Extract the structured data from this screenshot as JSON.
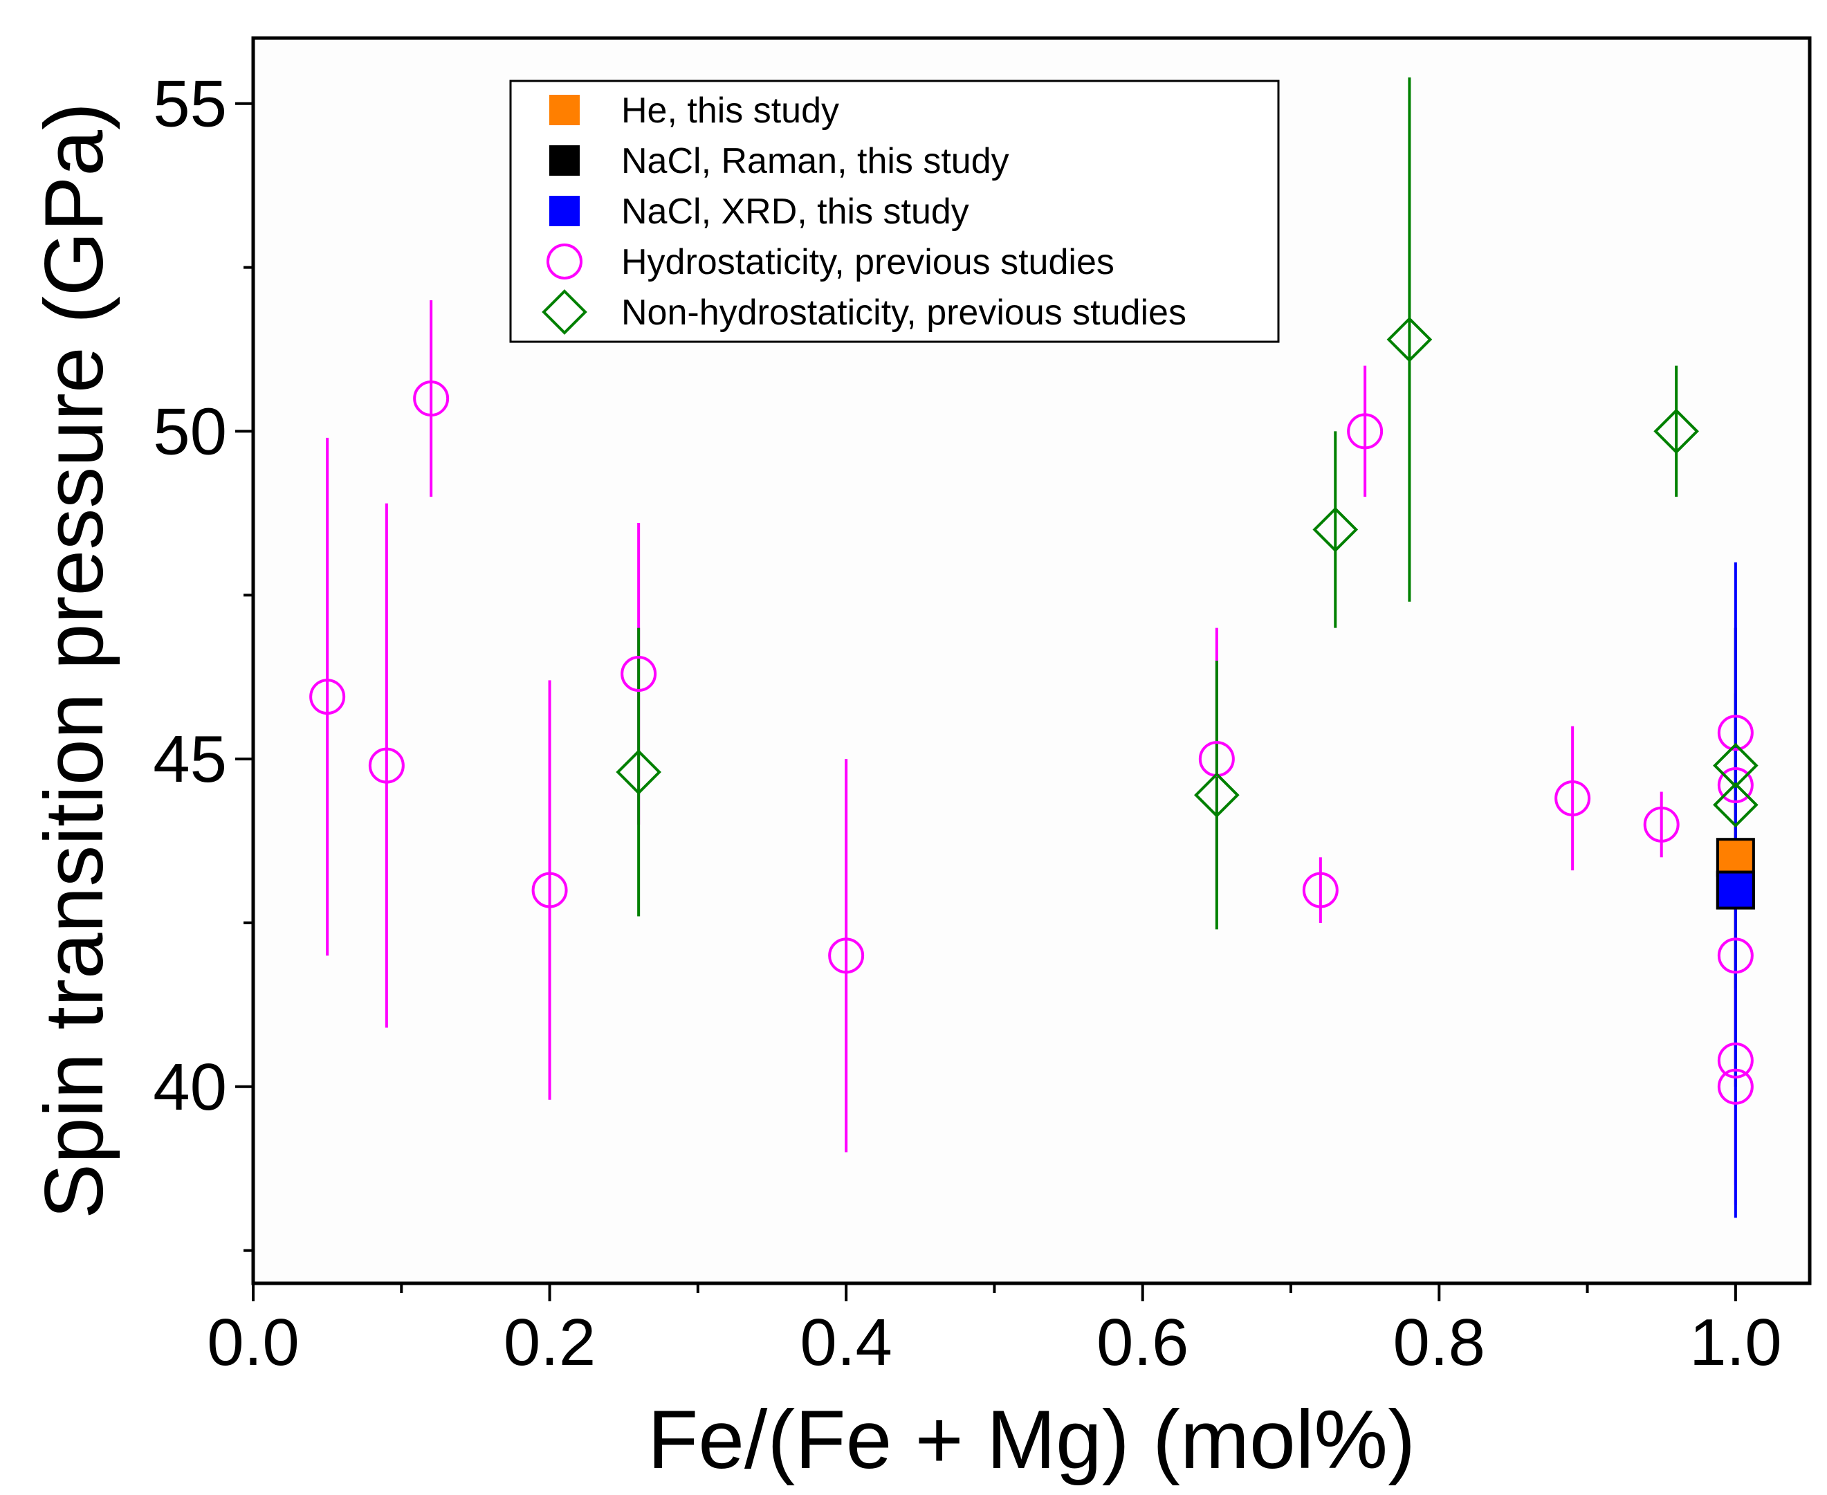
{
  "chart_data": {
    "type": "scatter",
    "title": "",
    "xlabel": "Fe/(Fe + Mg) (mol%)",
    "ylabel": "Spin transition pressure (GPa)",
    "xlim": [
      0.0,
      1.05
    ],
    "ylim": [
      37.0,
      56.0
    ],
    "xticks": [
      "0.0",
      "0.2",
      "0.4",
      "0.6",
      "0.8",
      "1.0"
    ],
    "xtick_values": [
      0.0,
      0.2,
      0.4,
      0.6,
      0.8,
      1.0
    ],
    "yticks": [
      "40",
      "45",
      "50",
      "55"
    ],
    "ytick_values": [
      40,
      45,
      50,
      55
    ],
    "grid": false,
    "legend_position": "top-center",
    "legend": [
      {
        "label": "He, this study",
        "marker": "square",
        "color": "#ff7f00"
      },
      {
        "label": "NaCl, Raman, this study",
        "marker": "square",
        "color": "#000000"
      },
      {
        "label": "NaCl, XRD, this study",
        "marker": "square",
        "color": "#0000ff"
      },
      {
        "label": "Hydrostaticity, previous studies",
        "marker": "circle",
        "color": "#ff00ff"
      },
      {
        "label": "Non-hydrostaticity, previous studies",
        "marker": "diamond",
        "color": "#008000"
      }
    ],
    "series": [
      {
        "name": "Hydrostaticity, previous studies",
        "marker": "circle",
        "color": "#ff00ff",
        "points": [
          {
            "x": 0.05,
            "y": 45.95,
            "ylow": 42.0,
            "yhigh": 49.9
          },
          {
            "x": 0.09,
            "y": 44.9,
            "ylow": 40.9,
            "yhigh": 48.9
          },
          {
            "x": 0.12,
            "y": 50.5,
            "ylow": 49.0,
            "yhigh": 52.0
          },
          {
            "x": 0.2,
            "y": 43.0,
            "ylow": 39.8,
            "yhigh": 46.2
          },
          {
            "x": 0.26,
            "y": 46.3,
            "ylow": 44.0,
            "yhigh": 48.6
          },
          {
            "x": 0.4,
            "y": 42.0,
            "ylow": 39.0,
            "yhigh": 45.0
          },
          {
            "x": 0.65,
            "y": 45.0,
            "ylow": 43.0,
            "yhigh": 47.0
          },
          {
            "x": 0.72,
            "y": 43.0,
            "ylow": 42.5,
            "yhigh": 43.5
          },
          {
            "x": 0.75,
            "y": 50.0,
            "ylow": 49.0,
            "yhigh": 51.0
          },
          {
            "x": 0.89,
            "y": 44.4,
            "ylow": 43.3,
            "yhigh": 45.5
          },
          {
            "x": 0.95,
            "y": 44.0,
            "ylow": 43.5,
            "yhigh": 44.5
          },
          {
            "x": 1.0,
            "y": 45.4,
            "ylow": 43.8,
            "yhigh": 47.0
          },
          {
            "x": 1.0,
            "y": 44.6,
            "ylow": 42.5,
            "yhigh": 46.7
          },
          {
            "x": 1.0,
            "y": 43.5,
            "ylow": 41.5,
            "yhigh": 45.5
          },
          {
            "x": 1.0,
            "y": 42.0,
            "ylow": 40.0,
            "yhigh": 44.0
          },
          {
            "x": 1.0,
            "y": 40.4,
            "ylow": 38.5,
            "yhigh": 42.3
          },
          {
            "x": 1.0,
            "y": 40.0,
            "ylow": 38.2,
            "yhigh": 41.8
          }
        ]
      },
      {
        "name": "Non-hydrostaticity, previous studies",
        "marker": "diamond",
        "color": "#008000",
        "points": [
          {
            "x": 0.26,
            "y": 44.8,
            "ylow": 42.6,
            "yhigh": 47.0
          },
          {
            "x": 0.65,
            "y": 44.45,
            "ylow": 42.4,
            "yhigh": 46.5
          },
          {
            "x": 0.73,
            "y": 48.5,
            "ylow": 47.0,
            "yhigh": 50.0
          },
          {
            "x": 0.78,
            "y": 51.4,
            "ylow": 47.4,
            "yhigh": 55.4
          },
          {
            "x": 0.96,
            "y": 50.0,
            "ylow": 49.0,
            "yhigh": 51.0
          },
          {
            "x": 1.0,
            "y": 44.9,
            "ylow": 42.8,
            "yhigh": 47.0
          },
          {
            "x": 1.0,
            "y": 44.3,
            "ylow": 41.5,
            "yhigh": 47.0
          }
        ]
      },
      {
        "name": "He, this study",
        "marker": "square",
        "color": "#ff7f00",
        "points": [
          {
            "x": 1.0,
            "y": 43.5,
            "ylow": 42.0,
            "yhigh": 45.0
          }
        ]
      },
      {
        "name": "NaCl, Raman, this study",
        "marker": "square",
        "color": "#000000",
        "points": [
          {
            "x": 1.0,
            "y": 43.0,
            "ylow": 40.0,
            "yhigh": 46.0
          }
        ]
      },
      {
        "name": "NaCl, XRD, this study",
        "marker": "square",
        "color": "#0000ff",
        "points": [
          {
            "x": 1.0,
            "y": 43.0,
            "ylow": 38.0,
            "yhigh": 48.0
          }
        ]
      }
    ]
  }
}
